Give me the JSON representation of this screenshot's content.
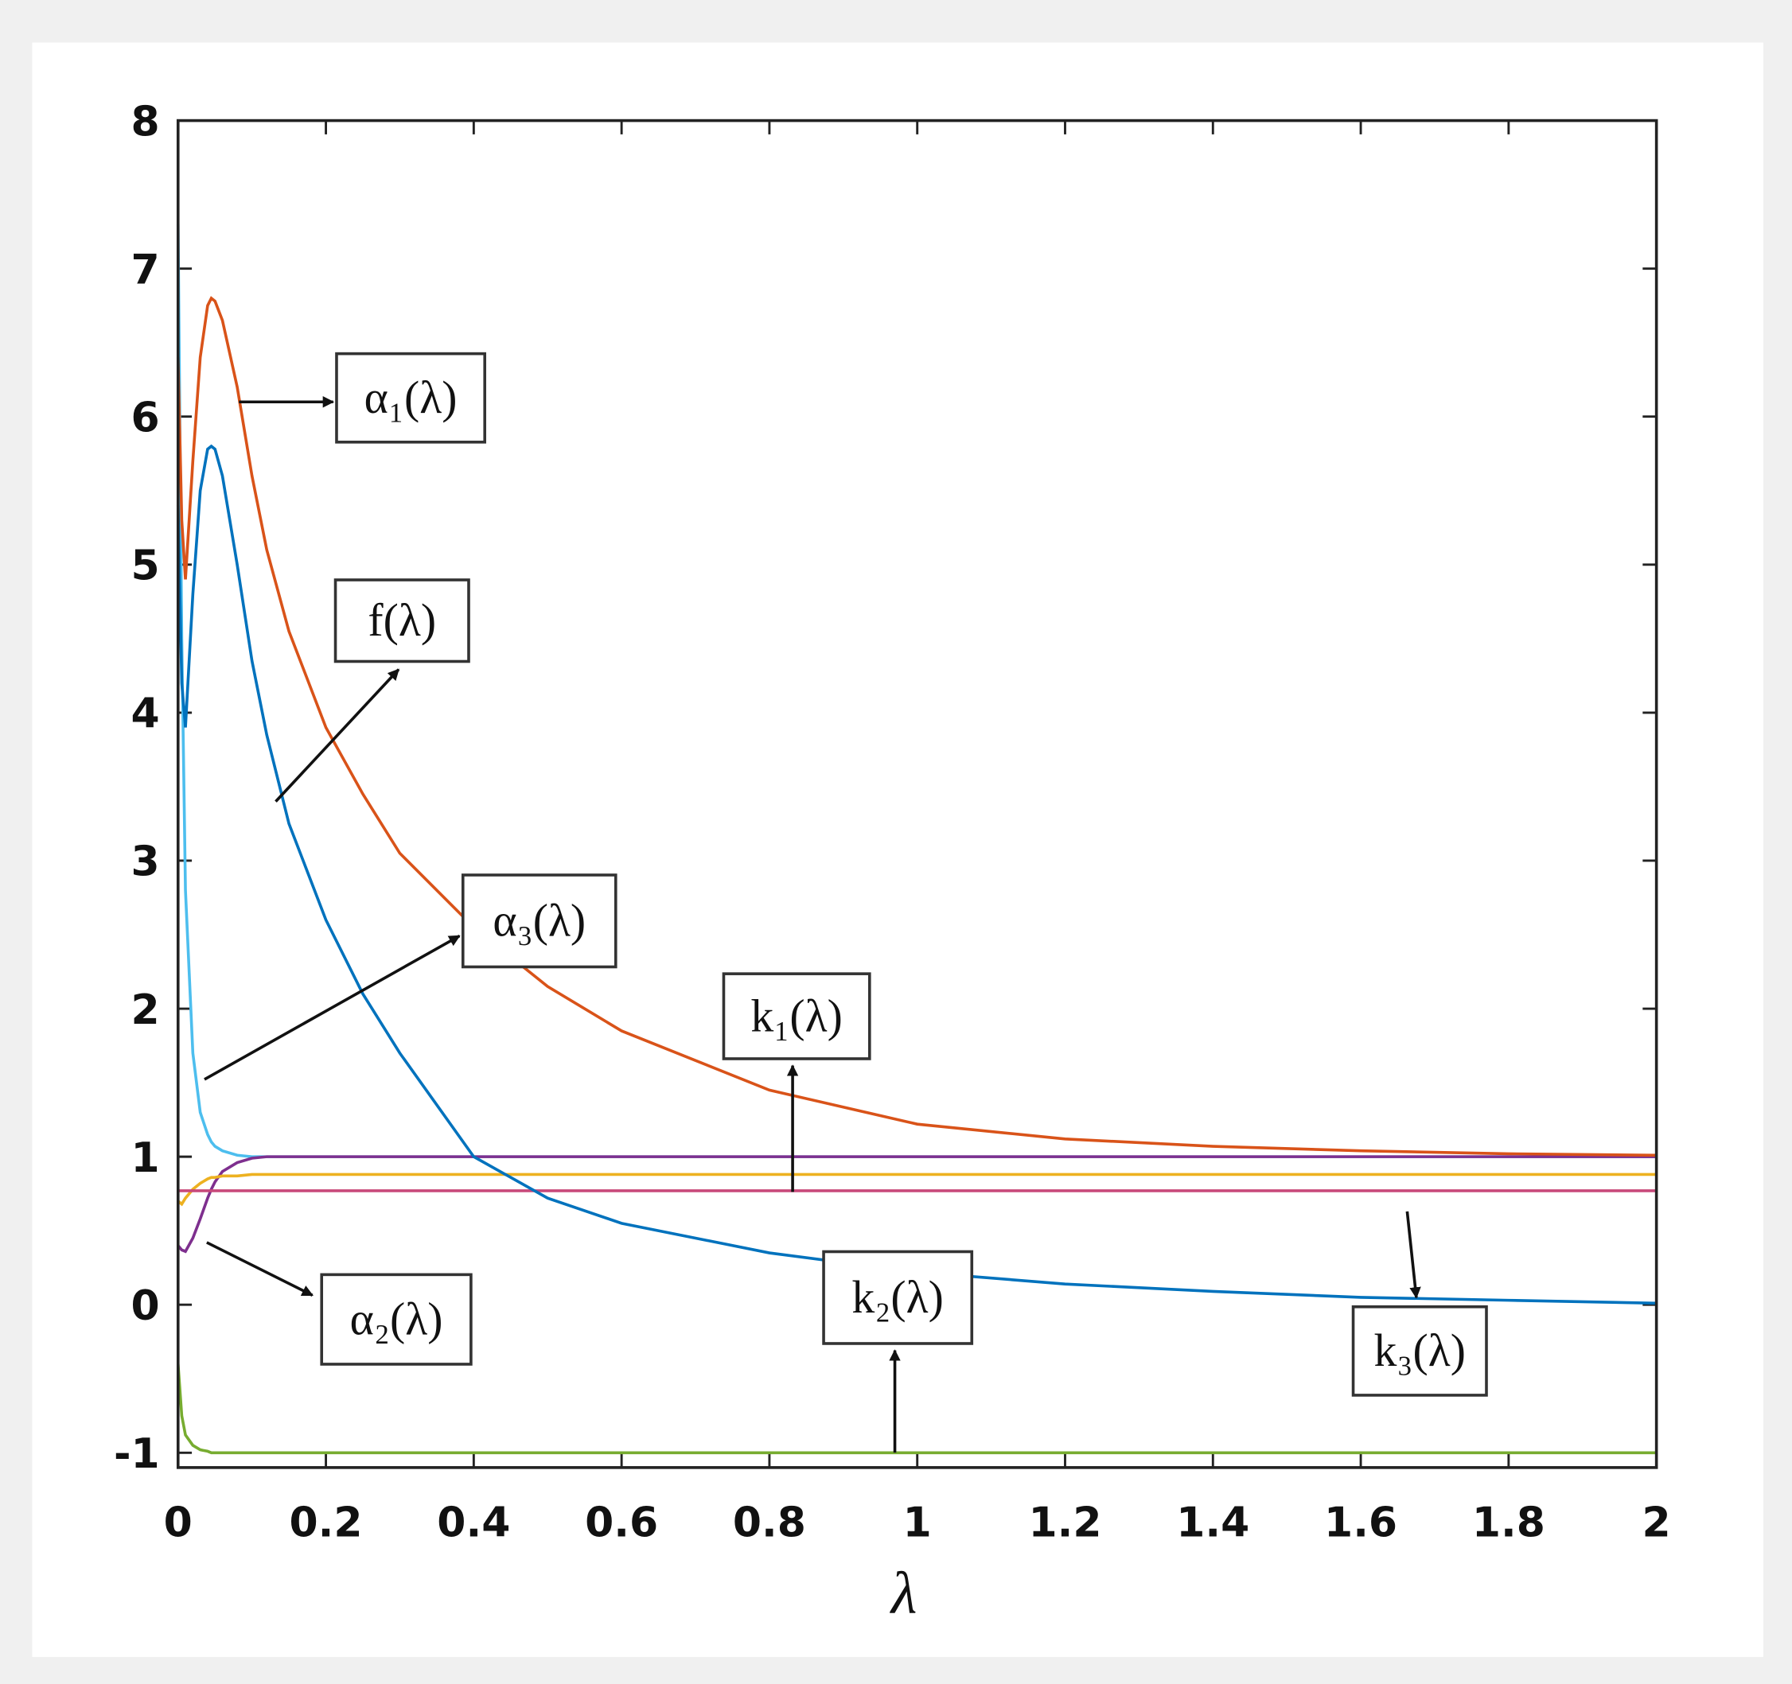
{
  "chart_data": {
    "type": "line",
    "xlabel": "λ",
    "x": [
      0,
      0.005,
      0.01,
      0.02,
      0.03,
      0.04,
      0.045,
      0.05,
      0.06,
      0.08,
      0.1,
      0.12,
      0.15,
      0.2,
      0.25,
      0.3,
      0.4,
      0.5,
      0.6,
      0.8,
      1,
      1.2,
      1.4,
      1.6,
      1.8,
      2
    ],
    "xlim": [
      0,
      2
    ],
    "xticks": [
      0,
      0.2,
      0.4,
      0.6,
      0.8,
      1,
      1.2,
      1.4,
      1.6,
      1.8,
      2
    ],
    "ylim": [
      -1.1,
      8
    ],
    "yticks": [
      -1,
      0,
      1,
      2,
      3,
      4,
      5,
      6,
      7,
      8
    ],
    "series": [
      {
        "name": "α₃(λ)",
        "color": "#4dbeee",
        "values": [
          7.3,
          4.5,
          2.8,
          1.7,
          1.3,
          1.15,
          1.1,
          1.07,
          1.04,
          1.01,
          1,
          1,
          1,
          1,
          1,
          1,
          1,
          1,
          1,
          1,
          1,
          1,
          1,
          1,
          1,
          1
        ]
      },
      {
        "name": "α₂(λ)",
        "color": "#7e2f8e",
        "values": [
          0.4,
          0.37,
          0.36,
          0.45,
          0.58,
          0.72,
          0.78,
          0.83,
          0.9,
          0.96,
          0.99,
          1,
          1,
          1,
          1,
          1,
          1,
          1,
          1,
          1,
          1,
          1,
          1,
          1,
          1,
          1
        ]
      },
      {
        "name": "k₁(λ)",
        "color": "#edb120",
        "values": [
          0.7,
          0.68,
          0.72,
          0.78,
          0.82,
          0.85,
          0.86,
          0.86,
          0.87,
          0.87,
          0.88,
          0.88,
          0.88,
          0.88,
          0.88,
          0.88,
          0.88,
          0.88,
          0.88,
          0.88,
          0.88,
          0.88,
          0.88,
          0.88,
          0.88,
          0.88
        ]
      },
      {
        "name": "k₃(λ)",
        "color": "#c8497a",
        "values": [
          0.77,
          0.77,
          0.77,
          0.77,
          0.77,
          0.77,
          0.77,
          0.77,
          0.77,
          0.77,
          0.77,
          0.77,
          0.77,
          0.77,
          0.77,
          0.77,
          0.77,
          0.77,
          0.77,
          0.77,
          0.77,
          0.77,
          0.77,
          0.77,
          0.77,
          0.77
        ]
      },
      {
        "name": "k₂(λ)",
        "color": "#77ac30",
        "values": [
          -0.4,
          -0.75,
          -0.88,
          -0.95,
          -0.98,
          -0.99,
          -1,
          -1,
          -1,
          -1,
          -1,
          -1,
          -1,
          -1,
          -1,
          -1,
          -1,
          -1,
          -1,
          -1,
          -1,
          -1,
          -1,
          -1,
          -1,
          -1
        ]
      },
      {
        "name": "f(λ)",
        "color": "#0072bd",
        "values": [
          5.4,
          4.2,
          3.9,
          4.8,
          5.5,
          5.78,
          5.8,
          5.78,
          5.6,
          5.0,
          4.35,
          3.85,
          3.25,
          2.6,
          2.1,
          1.7,
          1.0,
          0.72,
          0.55,
          0.35,
          0.22,
          0.14,
          0.09,
          0.05,
          0.03,
          0.01
        ]
      },
      {
        "name": "α₁(λ)",
        "color": "#d95319",
        "values": [
          6.4,
          5.3,
          4.9,
          5.7,
          6.4,
          6.75,
          6.8,
          6.78,
          6.65,
          6.2,
          5.6,
          5.1,
          4.55,
          3.9,
          3.45,
          3.05,
          2.55,
          2.15,
          1.85,
          1.45,
          1.22,
          1.12,
          1.07,
          1.04,
          1.02,
          1.01
        ]
      }
    ]
  }
}
